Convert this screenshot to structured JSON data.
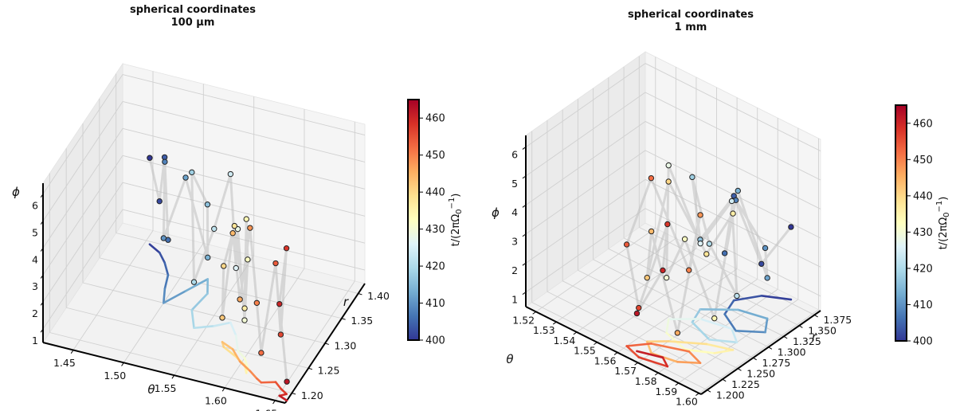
{
  "panels": [
    {
      "title_line1": "spherical coordinates",
      "title_line2": "100 μm",
      "chart_data": {
        "type": "line",
        "projection": "3d",
        "title": "spherical coordinates 100 μm",
        "grid": true,
        "axes": {
          "theta": {
            "label": "θ",
            "range": [
              1.42,
              1.66
            ],
            "ticks": [
              "1.45",
              "1.50",
              "1.55",
              "1.60",
              "1.65"
            ]
          },
          "r": {
            "label": "r",
            "range": [
              1.18,
              1.42
            ],
            "ticks": [
              "1.20",
              "1.25",
              "1.30",
              "1.35",
              "1.40"
            ]
          },
          "phi": {
            "label": "ϕ",
            "range": [
              0.5,
              6.4
            ],
            "ticks": [
              "1",
              "2",
              "3",
              "4",
              "5",
              "6"
            ]
          }
        },
        "colorbar": {
          "label": "t/(2πΩ₀⁻¹)",
          "range": [
            400,
            465
          ],
          "ticks": [
            "400",
            "410",
            "420",
            "430",
            "440",
            "450",
            "460"
          ],
          "colormap": "RdYlBu"
        },
        "series": [
          {
            "points": [
              {
                "theta": 1.455,
                "r": 1.395,
                "phi": 3.7,
                "t": 400
              },
              {
                "theta": 1.468,
                "r": 1.385,
                "phi": 2.4,
                "t": 402
              },
              {
                "theta": 1.478,
                "r": 1.37,
                "phi": 4.4,
                "t": 404
              },
              {
                "theta": 1.488,
                "r": 1.35,
                "phi": 1.8,
                "t": 406
              },
              {
                "theta": 1.493,
                "r": 1.325,
                "phi": 5.2,
                "t": 408
              },
              {
                "theta": 1.5,
                "r": 1.3,
                "phi": 2.9,
                "t": 410
              },
              {
                "theta": 1.512,
                "r": 1.33,
                "phi": 4.7,
                "t": 412
              },
              {
                "theta": 1.524,
                "r": 1.36,
                "phi": 1.3,
                "t": 414
              },
              {
                "theta": 1.532,
                "r": 1.335,
                "phi": 3.8,
                "t": 416
              },
              {
                "theta": 1.528,
                "r": 1.3,
                "phi": 5.6,
                "t": 418
              },
              {
                "theta": 1.54,
                "r": 1.27,
                "phi": 2.2,
                "t": 420
              },
              {
                "theta": 1.556,
                "r": 1.282,
                "phi": 4.1,
                "t": 422
              },
              {
                "theta": 1.568,
                "r": 1.295,
                "phi": 6.0,
                "t": 424
              },
              {
                "theta": 1.58,
                "r": 1.275,
                "phi": 3.0,
                "t": 426
              },
              {
                "theta": 1.59,
                "r": 1.25,
                "phi": 5.0,
                "t": 428
              },
              {
                "theta": 1.6,
                "r": 1.24,
                "phi": 1.9,
                "t": 430
              },
              {
                "theta": 1.608,
                "r": 1.225,
                "phi": 4.5,
                "t": 432
              },
              {
                "theta": 1.61,
                "r": 1.215,
                "phi": 6.2,
                "t": 434
              },
              {
                "theta": 1.604,
                "r": 1.228,
                "phi": 2.6,
                "t": 436
              },
              {
                "theta": 1.59,
                "r": 1.24,
                "phi": 5.3,
                "t": 438
              },
              {
                "theta": 1.576,
                "r": 1.25,
                "phi": 3.5,
                "t": 440
              },
              {
                "theta": 1.572,
                "r": 1.258,
                "phi": 1.4,
                "t": 442
              },
              {
                "theta": 1.585,
                "r": 1.25,
                "phi": 4.8,
                "t": 444
              },
              {
                "theta": 1.598,
                "r": 1.232,
                "phi": 2.8,
                "t": 446
              },
              {
                "theta": 1.612,
                "r": 1.22,
                "phi": 5.8,
                "t": 448
              },
              {
                "theta": 1.622,
                "r": 1.21,
                "phi": 3.3,
                "t": 450
              },
              {
                "theta": 1.628,
                "r": 1.205,
                "phi": 1.6,
                "t": 452
              },
              {
                "theta": 1.64,
                "r": 1.212,
                "phi": 4.9,
                "t": 454
              },
              {
                "theta": 1.648,
                "r": 1.203,
                "phi": 2.5,
                "t": 456
              },
              {
                "theta": 1.656,
                "r": 1.196,
                "phi": 5.9,
                "t": 458
              },
              {
                "theta": 1.651,
                "r": 1.19,
                "phi": 3.9,
                "t": 460
              },
              {
                "theta": 1.66,
                "r": 1.185,
                "phi": 1.2,
                "t": 462
              }
            ]
          }
        ]
      }
    },
    {
      "title_line1": "spherical coordinates",
      "title_line2": "1 mm",
      "chart_data": {
        "type": "line",
        "projection": "3d",
        "title": "spherical coordinates 1 mm",
        "grid": true,
        "axes": {
          "theta": {
            "label": "θ",
            "range": [
              1.515,
              1.601
            ],
            "ticks": [
              "1.52",
              "1.53",
              "1.54",
              "1.55",
              "1.56",
              "1.57",
              "1.58",
              "1.59",
              "1.60"
            ]
          },
          "r": {
            "label": "r",
            "range": [
              1.19,
              1.385
            ],
            "ticks": [
              "1.200",
              "1.225",
              "1.250",
              "1.275",
              "1.300",
              "1.325",
              "1.350",
              "1.375"
            ]
          },
          "phi": {
            "label": "ϕ",
            "range": [
              0.5,
              6.4
            ],
            "ticks": [
              "1",
              "2",
              "3",
              "4",
              "5",
              "6"
            ]
          }
        },
        "colorbar": {
          "label": "t/(2πΩ₀⁻¹)",
          "range": [
            400,
            465
          ],
          "ticks": [
            "400",
            "410",
            "420",
            "430",
            "440",
            "450",
            "460"
          ],
          "colormap": "RdYlBu"
        },
        "series": [
          {
            "points": [
              {
                "theta": 1.588,
                "r": 1.38,
                "phi": 3.0,
                "t": 400
              },
              {
                "theta": 1.578,
                "r": 1.365,
                "phi": 1.6,
                "t": 402
              },
              {
                "theta": 1.572,
                "r": 1.34,
                "phi": 4.1,
                "t": 404
              },
              {
                "theta": 1.575,
                "r": 1.315,
                "phi": 2.6,
                "t": 406
              },
              {
                "theta": 1.585,
                "r": 1.3,
                "phi": 5.0,
                "t": 408
              },
              {
                "theta": 1.594,
                "r": 1.318,
                "phi": 3.4,
                "t": 410
              },
              {
                "theta": 1.589,
                "r": 1.338,
                "phi": 1.9,
                "t": 412
              },
              {
                "theta": 1.577,
                "r": 1.33,
                "phi": 4.6,
                "t": 414
              },
              {
                "theta": 1.566,
                "r": 1.305,
                "phi": 2.9,
                "t": 416
              },
              {
                "theta": 1.569,
                "r": 1.282,
                "phi": 5.5,
                "t": 418
              },
              {
                "theta": 1.581,
                "r": 1.27,
                "phi": 3.8,
                "t": 420
              },
              {
                "theta": 1.59,
                "r": 1.285,
                "phi": 2.1,
                "t": 422
              },
              {
                "theta": 1.583,
                "r": 1.3,
                "phi": 4.9,
                "t": 424
              },
              {
                "theta": 1.57,
                "r": 1.292,
                "phi": 3.1,
                "t": 426
              },
              {
                "theta": 1.561,
                "r": 1.27,
                "phi": 5.8,
                "t": 428
              },
              {
                "theta": 1.566,
                "r": 1.25,
                "phi": 2.4,
                "t": 430
              },
              {
                "theta": 1.578,
                "r": 1.24,
                "phi": 4.3,
                "t": 432
              },
              {
                "theta": 1.588,
                "r": 1.255,
                "phi": 1.7,
                "t": 434
              },
              {
                "theta": 1.592,
                "r": 1.272,
                "phi": 5.2,
                "t": 436
              },
              {
                "theta": 1.582,
                "r": 1.262,
                "phi": 3.6,
                "t": 438
              },
              {
                "theta": 1.57,
                "r": 1.24,
                "phi": 6.0,
                "t": 440
              },
              {
                "theta": 1.564,
                "r": 1.225,
                "phi": 2.7,
                "t": 442
              },
              {
                "theta": 1.57,
                "r": 1.212,
                "phi": 4.7,
                "t": 444
              },
              {
                "theta": 1.581,
                "r": 1.218,
                "phi": 1.5,
                "t": 446
              },
              {
                "theta": 1.588,
                "r": 1.232,
                "phi": 5.6,
                "t": 448
              },
              {
                "theta": 1.58,
                "r": 1.24,
                "phi": 3.3,
                "t": 450
              },
              {
                "theta": 1.566,
                "r": 1.225,
                "phi": 6.2,
                "t": 452
              },
              {
                "theta": 1.56,
                "r": 1.205,
                "phi": 4.0,
                "t": 454
              },
              {
                "theta": 1.568,
                "r": 1.198,
                "phi": 2.2,
                "t": 456
              },
              {
                "theta": 1.58,
                "r": 1.205,
                "phi": 5.4,
                "t": 458
              },
              {
                "theta": 1.575,
                "r": 1.214,
                "phi": 3.5,
                "t": 460
              },
              {
                "theta": 1.565,
                "r": 1.205,
                "phi": 1.8,
                "t": 462
              }
            ]
          }
        ]
      }
    }
  ]
}
